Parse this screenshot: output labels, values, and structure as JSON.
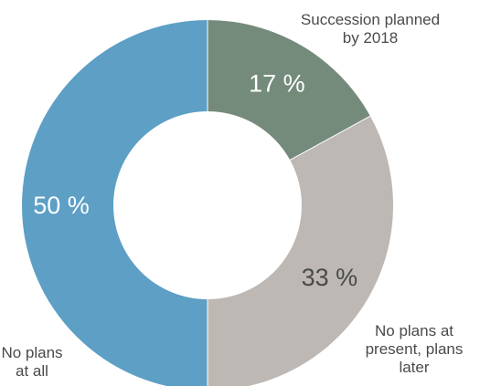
{
  "chart_data": {
    "type": "pie",
    "donut": true,
    "title": "",
    "slices": [
      {
        "name": "Succession planned by 2018",
        "value": 17,
        "value_label": "17 %",
        "label_lines": [
          "Succession planned",
          "by 2018"
        ],
        "color": "#748b7c",
        "value_color": "#ffffff"
      },
      {
        "name": "No plans at present, plans later",
        "value": 33,
        "value_label": "33 %",
        "label_lines": [
          "No plans at",
          "present, plans",
          "later"
        ],
        "color": "#bdb8b3",
        "value_color": "#4a4a4a"
      },
      {
        "name": "No plans at all",
        "value": 50,
        "value_label": "50 %",
        "label_lines": [
          "No plans",
          "at all"
        ],
        "color": "#5d9fc5",
        "value_color": "#ffffff"
      }
    ],
    "start_angle": "12 o'clock",
    "direction": "clockwise",
    "legend": "none"
  }
}
